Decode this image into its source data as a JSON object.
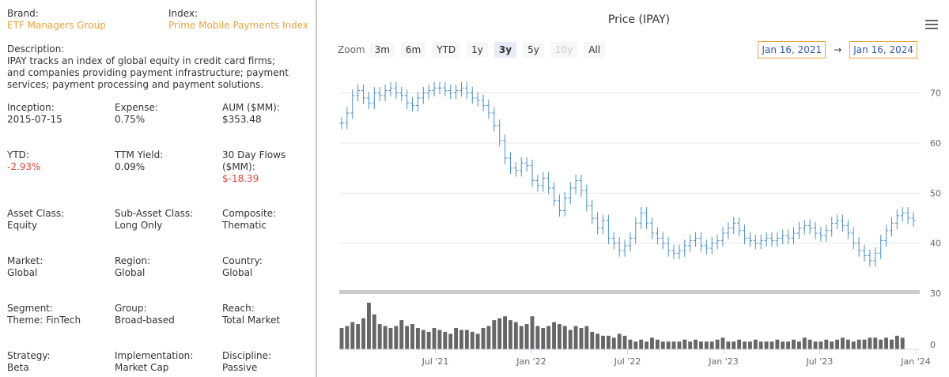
{
  "fund": {
    "brand_label": "Brand:",
    "brand": "ETF Managers Group",
    "index_label": "Index:",
    "index": "Prime Mobile Payments Index",
    "description_label": "Description:",
    "description": "IPAY tracks an index of global equity in credit card firms; and companies providing payment infrastructure; payment services; payment processing and payment solutions.",
    "inception_label": "Inception:",
    "inception": "2015-07-15",
    "expense_label": "Expense:",
    "expense": "0.75%",
    "aum_label": "AUM ($MM):",
    "aum": "$353.48",
    "ytd_label": "YTD:",
    "ytd": "-2.93%",
    "ttm_label": "TTM Yield:",
    "ttm": "0.09%",
    "flows_label": "30 Day Flows ($MM):",
    "flows": "$-18.39",
    "asset_class_label": "Asset Class:",
    "asset_class": "Equity",
    "sub_asset_label": "Sub-Asset Class:",
    "sub_asset": "Long Only",
    "composite_label": "Composite:",
    "composite": "Thematic",
    "market_label": "Market:",
    "market": "Global",
    "region_label": "Region:",
    "region": "Global",
    "country_label": "Country:",
    "country": "Global",
    "segment_label": "Segment:",
    "segment": "Theme: FinTech",
    "group_label": "Group:",
    "group": "Broad-based",
    "reach_label": "Reach:",
    "reach": "Total Market",
    "strategy_label": "Strategy:",
    "strategy": "Beta",
    "implementation_label": "Implementation:",
    "implementation": "Market Cap",
    "discipline_label": "Discipline:",
    "discipline": "Passive"
  },
  "chart_ui": {
    "zoom_label": "Zoom",
    "zoom_buttons": [
      "3m",
      "6m",
      "YTD",
      "1y",
      "3y",
      "5y",
      "10y",
      "All"
    ],
    "active_zoom": "3y",
    "disabled_zoom": "10y",
    "range_from": "Jan 16, 2021",
    "range_arrow": "→",
    "range_to": "Jan 16, 2024",
    "menu_icon": "hamburger-menu-icon"
  },
  "chart_data": {
    "type": "ohlc",
    "title": "Price (IPAY)",
    "x_tick_labels": [
      "Jul '21",
      "Jan '22",
      "Jul '22",
      "Jan '23",
      "Jul '23",
      "Jan '24"
    ],
    "x_tick_positions": [
      0.1667,
      0.3333,
      0.5,
      0.6667,
      0.8333,
      1.0
    ],
    "price_axis": {
      "ticks": [
        30,
        40,
        50,
        60,
        70
      ],
      "ylim": [
        30,
        75
      ]
    },
    "volume_axis": {
      "ticks": [
        0
      ]
    },
    "series": [
      {
        "name": "Price",
        "color": "#4a90c8",
        "values": [
          64,
          66,
          69.5,
          70.5,
          69,
          68,
          70,
          69.5,
          70.5,
          71,
          70,
          69.5,
          68,
          67.5,
          69,
          70,
          70.5,
          71,
          71,
          70.5,
          70,
          70.5,
          71,
          70,
          69,
          68.5,
          67.5,
          66,
          63.5,
          60.5,
          57,
          55,
          54.5,
          56,
          55.5,
          52.5,
          51.5,
          53,
          51,
          48.5,
          46.5,
          49,
          51,
          52.5,
          50.5,
          47.5,
          45,
          43,
          44.5,
          41,
          40,
          38.5,
          39.5,
          41,
          44,
          46,
          44,
          42,
          41,
          40,
          38.5,
          38,
          38.5,
          39.5,
          40.5,
          41,
          39.5,
          39,
          40,
          40.5,
          42,
          43,
          44,
          42.5,
          41,
          40.5,
          40,
          40.5,
          41,
          40.5,
          41,
          41.5,
          41,
          42,
          43,
          43.5,
          43,
          42,
          41.5,
          42.5,
          44,
          44.5,
          43.5,
          42,
          40,
          38.5,
          37.5,
          36.5,
          38,
          40.5,
          42.5,
          44,
          45.5,
          46,
          45,
          44.5
        ]
      },
      {
        "name": "Volume",
        "color": "#666666",
        "values": [
          55,
          60,
          70,
          65,
          80,
          120,
          90,
          65,
          60,
          55,
          60,
          75,
          60,
          65,
          55,
          50,
          45,
          55,
          50,
          45,
          40,
          55,
          50,
          50,
          45,
          40,
          55,
          60,
          75,
          80,
          85,
          75,
          70,
          60,
          65,
          85,
          60,
          55,
          60,
          70,
          65,
          60,
          50,
          60,
          55,
          60,
          45,
          40,
          35,
          35,
          30,
          40,
          35,
          25,
          20,
          25,
          20,
          30,
          25,
          20,
          20,
          20,
          20,
          25,
          20,
          25,
          20,
          20,
          20,
          25,
          30,
          20,
          20,
          25,
          20,
          20,
          25,
          20,
          20,
          20,
          25,
          20,
          20,
          25,
          20,
          30,
          25,
          20,
          20,
          25,
          20,
          25,
          30,
          25,
          20,
          25,
          25,
          30,
          30,
          25,
          30,
          25,
          35,
          30
        ]
      }
    ]
  }
}
